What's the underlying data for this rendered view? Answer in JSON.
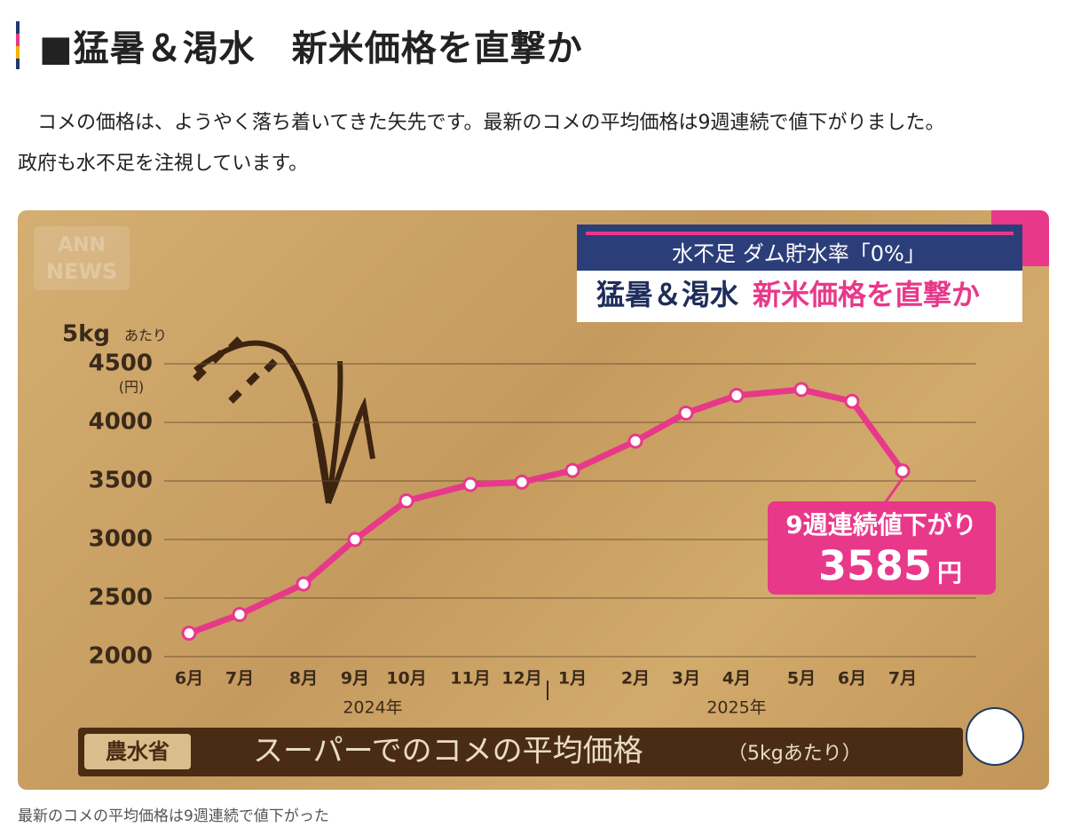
{
  "header": {
    "title": "■猛暑＆渇水　新米価格を直撃か"
  },
  "paragraph": [
    "　コメの価格は、ようやく落ち着いてきた矢先です。最新のコメの平均価格は9週連続で値下がりました。",
    "政府も水不足を注視しています。"
  ],
  "logo": {
    "top": "ANN",
    "bottom": "NEWS"
  },
  "badge": {
    "top": "水不足 ダム貯水率「0%」",
    "left": "猛暑＆渇水",
    "right": "新米価格を直撃か"
  },
  "chart_data": {
    "type": "line",
    "y_label": "5kg",
    "y_label_sub": "あたり",
    "y_unit": "(円)",
    "categories": [
      "6月",
      "7月",
      "8月",
      "9月",
      "10月",
      "11月",
      "12月",
      "1月",
      "2月",
      "3月",
      "4月",
      "5月",
      "6月",
      "7月"
    ],
    "years": [
      "2024年",
      "2025年"
    ],
    "values": [
      2200,
      2360,
      2620,
      3000,
      3330,
      3470,
      3490,
      3590,
      3840,
      4080,
      4230,
      4280,
      4180,
      3585
    ],
    "color": "#e8388a",
    "ylim": [
      2000,
      4500
    ],
    "yticks": [
      2000,
      2500,
      3000,
      3500,
      4000,
      4500
    ],
    "grid": true,
    "annotation": "9週連続値下がり",
    "annotation_unit": "円",
    "source": "農水省",
    "footer": "スーパーでのコメの平均価格",
    "footer_note": "（5kgあたり）"
  },
  "caption": "最新のコメの平均価格は9週連続で値下がった"
}
